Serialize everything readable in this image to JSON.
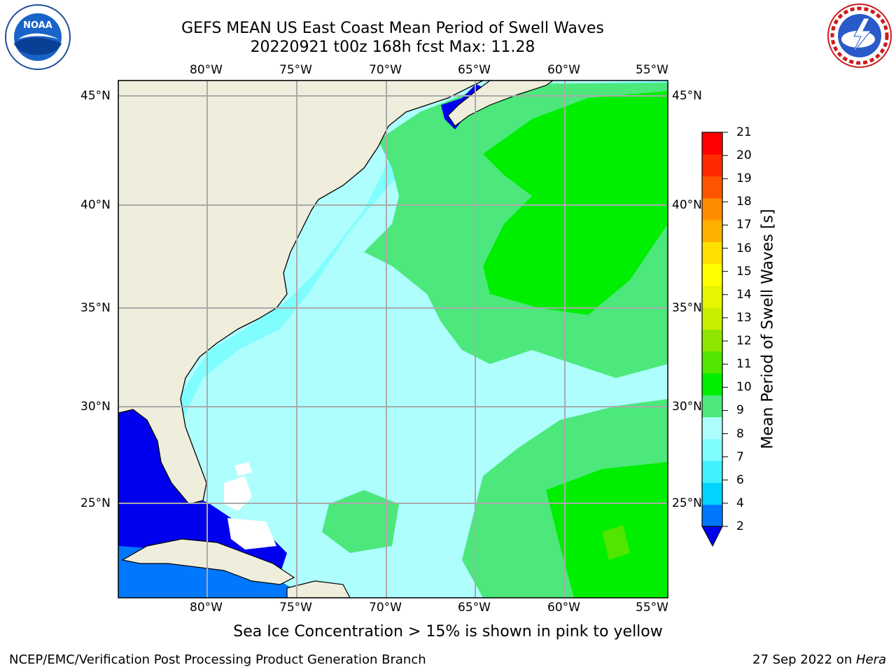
{
  "header": {
    "title_line1": "GEFS MEAN US East Coast Mean Period of Swell Waves",
    "title_line2": "20220921 t00z 168h fcst   Max: 11.28"
  },
  "logos": {
    "left": {
      "name": "noaa-logo",
      "text": "NOAA",
      "ring_text": "NATIONAL OCEANIC AND ATMOSPHERIC ADMINISTRATION · U.S. DEPARTMENT OF COMMERCE"
    },
    "right": {
      "name": "nws-logo",
      "ring_text": "NATIONAL WEATHER SERVICE"
    }
  },
  "map": {
    "lon_labels": [
      "80°W",
      "75°W",
      "70°W",
      "65°W",
      "60°W",
      "55°W"
    ],
    "lat_labels": [
      "45°N",
      "40°N",
      "35°N",
      "30°N",
      "25°N"
    ],
    "colors": {
      "land": "#efeedc",
      "water_dark_blue": "#0000ee",
      "gridline": "#aaaaaa"
    }
  },
  "colorbar": {
    "label": "Mean Period of Swell Waves [s]",
    "ticks": [
      "2",
      "4",
      "6",
      "7",
      "8",
      "9",
      "10",
      "11",
      "12",
      "13",
      "14",
      "15",
      "16",
      "17",
      "18",
      "19",
      "20",
      "21"
    ],
    "bands": [
      "#0077ff",
      "#00d4ff",
      "#40f0ff",
      "#7ffdff",
      "#aefefe",
      "#4ce87c",
      "#00ef00",
      "#50e600",
      "#8fe600",
      "#c8ee00",
      "#e6f500",
      "#ffff00",
      "#ffe000",
      "#ffb000",
      "#ff8c00",
      "#ff5500",
      "#ff2a00",
      "#ff0000"
    ],
    "min_arrow_color": "#0000ee"
  },
  "caption": "Sea Ice Concentration > 15% is shown in pink to yellow",
  "footer": {
    "left": "NCEP/EMC/Verification Post Processing Product Generation Branch",
    "right_date": "27 Sep 2022 on ",
    "right_host": "Hera"
  }
}
